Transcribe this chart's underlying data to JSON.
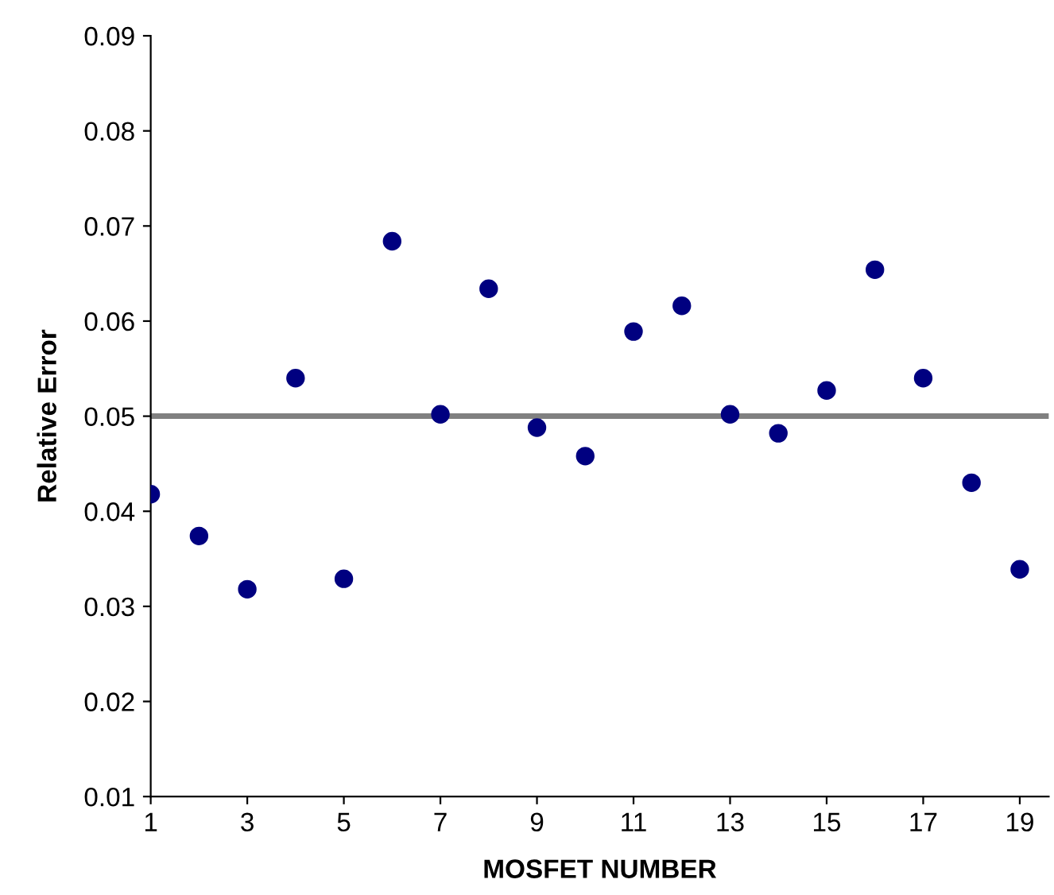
{
  "chart_data": {
    "type": "scatter",
    "xlabel": "MOSFET NUMBER",
    "ylabel": "Relative Error",
    "x": [
      1,
      2,
      3,
      4,
      5,
      6,
      7,
      8,
      9,
      10,
      11,
      12,
      13,
      14,
      15,
      16,
      17,
      18,
      19
    ],
    "series": [
      {
        "color": "#000080",
        "values": [
          0.0418,
          0.0374,
          0.0318,
          0.054,
          0.0329,
          0.0684,
          0.0502,
          0.0634,
          0.0488,
          0.0458,
          0.0589,
          0.0616,
          0.0502,
          0.0482,
          0.0527,
          0.0654,
          0.054,
          0.043,
          0.0339
        ]
      }
    ],
    "xlim": [
      1,
      19.6
    ],
    "xticks": [
      1,
      3,
      5,
      7,
      9,
      11,
      13,
      15,
      17,
      19
    ],
    "ylim": [
      0.01,
      0.09
    ],
    "yticks": [
      0.01,
      0.02,
      0.03,
      0.04,
      0.05,
      0.06,
      0.07,
      0.08,
      0.09
    ],
    "ref_lines": [
      {
        "axis": "y",
        "value": 0.05,
        "color": "#808080"
      }
    ],
    "marker": "circle",
    "grid": false,
    "legend": false
  }
}
